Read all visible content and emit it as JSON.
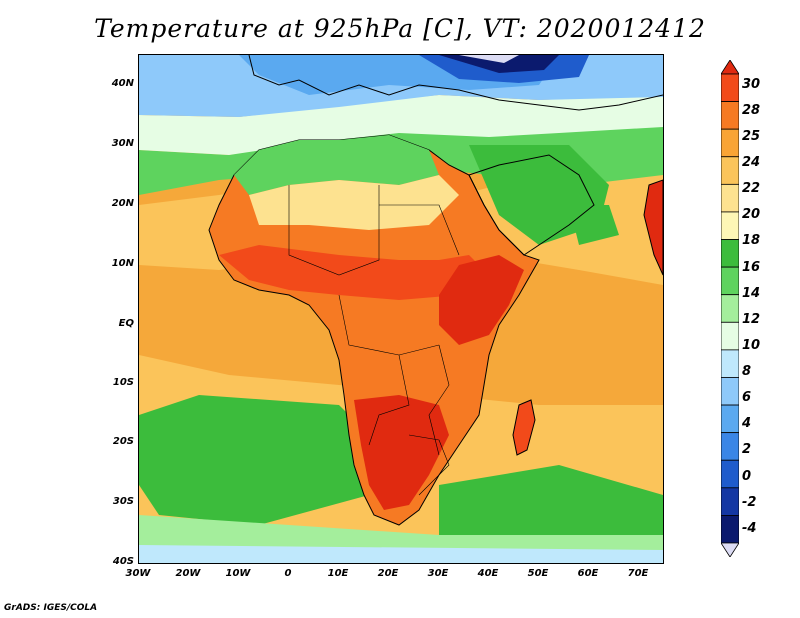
{
  "title": "Temperature at 925hPa [C], VT: 2020012412",
  "credit": "GrADS: IGES/COLA",
  "axes": {
    "lat_labels": [
      "40N",
      "30N",
      "20N",
      "10N",
      "EQ",
      "10S",
      "20S",
      "30S",
      "40S"
    ],
    "lon_labels": [
      "30W",
      "20W",
      "10W",
      "0",
      "10E",
      "20E",
      "30E",
      "40E",
      "50E",
      "60E",
      "70E"
    ]
  },
  "colorbar": {
    "levels": [
      "30",
      "28",
      "25",
      "24",
      "22",
      "20",
      "18",
      "16",
      "14",
      "12",
      "10",
      "8",
      "6",
      "4",
      "2",
      "0",
      "-2",
      "-4"
    ],
    "colors": [
      "#e02a10",
      "#f24a1a",
      "#f67a23",
      "#f9a435",
      "#fbc45a",
      "#fde290",
      "#fdf7b6",
      "#3cbc3c",
      "#5ed35e",
      "#a4ee9c",
      "#e6fde4",
      "#bfe8fc",
      "#8ec9fa",
      "#5aa9f0",
      "#3a86e6",
      "#1f5ccc",
      "#1437a3",
      "#0b1a6e",
      "#dcdcf4"
    ]
  }
}
